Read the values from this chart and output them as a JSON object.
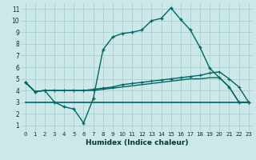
{
  "xlabel": "Humidex (Indice chaleur)",
  "background_color": "#cce8e8",
  "grid_color": "#aacfcf",
  "line_color": "#006666",
  "xlim": [
    -0.5,
    23.5
  ],
  "ylim": [
    0.5,
    11.5
  ],
  "xticks": [
    0,
    1,
    2,
    3,
    4,
    5,
    6,
    7,
    8,
    9,
    10,
    11,
    12,
    13,
    14,
    15,
    16,
    17,
    18,
    19,
    20,
    21,
    22,
    23
  ],
  "yticks": [
    1,
    2,
    3,
    4,
    5,
    6,
    7,
    8,
    9,
    10,
    11
  ],
  "line1_x": [
    0,
    1,
    2,
    3,
    4,
    5,
    6,
    7,
    8,
    9,
    10,
    11,
    12,
    13,
    14,
    15,
    16,
    17,
    18,
    19,
    20,
    21,
    22,
    23
  ],
  "line1_y": [
    4.7,
    3.9,
    4.0,
    3.0,
    2.6,
    2.4,
    1.2,
    3.3,
    7.5,
    8.6,
    8.9,
    9.0,
    9.2,
    10.0,
    10.2,
    11.1,
    10.1,
    9.2,
    7.7,
    5.9,
    5.1,
    4.3,
    3.0,
    3.0
  ],
  "line2_x": [
    0,
    1,
    2,
    3,
    4,
    5,
    6,
    7,
    8,
    9,
    10,
    11,
    12,
    13,
    14,
    15,
    16,
    17,
    18,
    19,
    20,
    21,
    22,
    23
  ],
  "line2_y": [
    4.7,
    3.9,
    4.0,
    4.0,
    4.0,
    4.0,
    4.0,
    4.1,
    4.2,
    4.3,
    4.5,
    4.6,
    4.7,
    4.8,
    4.9,
    5.0,
    5.1,
    5.2,
    5.3,
    5.5,
    5.6,
    5.0,
    4.3,
    3.0
  ],
  "line3_x": [
    0,
    1,
    2,
    3,
    4,
    5,
    6,
    7,
    8,
    9,
    10,
    11,
    12,
    13,
    14,
    15,
    16,
    17,
    18,
    19,
    20,
    21,
    22,
    23
  ],
  "line3_y": [
    4.7,
    3.9,
    4.0,
    4.0,
    4.0,
    4.0,
    4.0,
    4.0,
    4.1,
    4.2,
    4.3,
    4.4,
    4.5,
    4.6,
    4.7,
    4.8,
    4.9,
    5.0,
    5.0,
    5.1,
    5.1,
    4.3,
    3.0,
    3.0
  ],
  "line4_x": [
    0,
    23
  ],
  "line4_y": [
    3.0,
    3.0
  ],
  "marker_x1": [
    0,
    1,
    2,
    3,
    4,
    5,
    6,
    7,
    8,
    9,
    10,
    11,
    12,
    13,
    14,
    15,
    16,
    17,
    18,
    19,
    20,
    21,
    22,
    23
  ],
  "marker_y1": [
    4.7,
    3.9,
    4.0,
    3.0,
    2.6,
    2.4,
    1.2,
    3.3,
    7.5,
    8.6,
    8.9,
    9.0,
    9.2,
    10.0,
    10.2,
    11.1,
    10.1,
    9.2,
    7.7,
    5.9,
    5.1,
    4.3,
    3.0,
    3.0
  ],
  "fig_width": 3.2,
  "fig_height": 2.0,
  "dpi": 100
}
